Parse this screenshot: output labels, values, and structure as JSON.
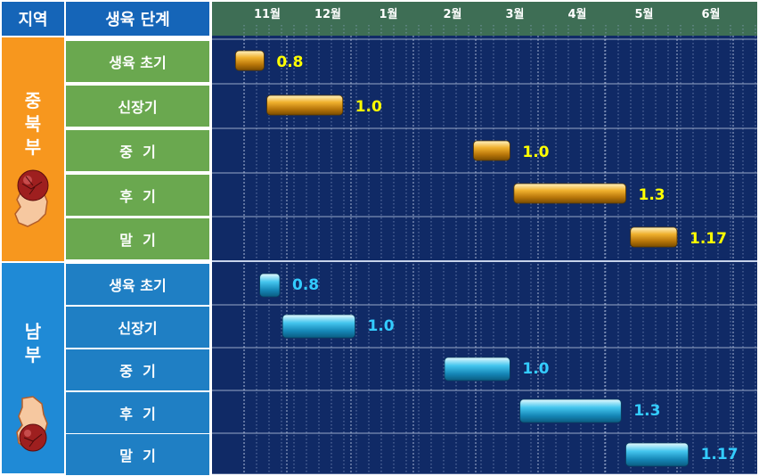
{
  "header": {
    "region_col": "지역",
    "stage_col": "생육 단계"
  },
  "months": [
    "11월",
    "12월",
    "1월",
    "2월",
    "3월",
    "4월",
    "5월",
    "6월"
  ],
  "regions": [
    {
      "label": "중\n북\n부",
      "color": "#f7971e",
      "stage_color": "#6aa84f",
      "bar_color": "#e8a317",
      "value_color": "#ffff00",
      "stages": [
        "생육 초기",
        "신장기",
        "중  기",
        "후  기",
        "말  기"
      ]
    },
    {
      "label": "남\n부",
      "color": "#1f8ad6",
      "stage_color": "#1f7fc4",
      "bar_color": "#3ab8e8",
      "value_color": "#33ccff",
      "stages": [
        "생육 초기",
        "신장기",
        "중  기",
        "후  기",
        "말  기"
      ]
    }
  ],
  "chart_data": {
    "type": "gantt",
    "x_axis": "month",
    "x_ticks": [
      "11월",
      "12월",
      "1월",
      "2월",
      "3월",
      "4월",
      "5월",
      "6월"
    ],
    "series": [
      {
        "name": "중북부",
        "tasks": [
          {
            "stage": "생육 초기",
            "start": "10/25",
            "end": "11/15",
            "value": "0.8"
          },
          {
            "stage": "신장기",
            "start": "11/17",
            "end": "12/28",
            "value": "1.0"
          },
          {
            "stage": "중  기",
            "start": "2/28",
            "end": "3/18",
            "value": "1.0"
          },
          {
            "stage": "후  기",
            "start": "3/20",
            "end": "5/10",
            "value": "1.3"
          },
          {
            "stage": "말  기",
            "start": "5/12",
            "end": "6/1",
            "value": "1.17"
          }
        ]
      },
      {
        "name": "남부",
        "tasks": [
          {
            "stage": "생육 초기",
            "start": "11/12",
            "end": "11/26",
            "value": "0.8"
          },
          {
            "stage": "신장기",
            "start": "11/28",
            "end": "1/3",
            "value": "1.0"
          },
          {
            "stage": "중  기",
            "start": "2/15",
            "end": "3/18",
            "value": "1.0"
          },
          {
            "stage": "후  기",
            "start": "3/23",
            "end": "5/8",
            "value": "1.3"
          },
          {
            "stage": "말  기",
            "start": "5/10",
            "end": "6/7",
            "value": "1.17"
          }
        ]
      }
    ]
  }
}
